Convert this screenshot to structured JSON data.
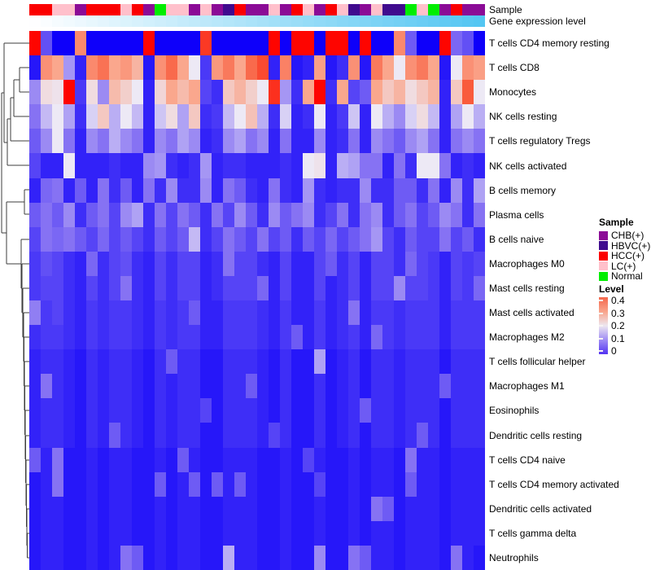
{
  "annotations": {
    "sample_label": "Sample",
    "gene_label": "Gene expression level"
  },
  "chart_data": {
    "type": "heatmap",
    "rows": [
      "T cells CD4 memory resting",
      "T cells CD8",
      "Monocytes",
      "NK cells resting",
      "T cells regulatory  Tregs",
      "NK cells activated",
      "B cells memory",
      "Plasma cells",
      "B cells naive",
      "Macrophages M0",
      "Mast cells resting",
      "Mast cells activated",
      "Macrophages M2",
      "T cells follicular helper",
      "Macrophages M1",
      "Eosinophils",
      "Dendritic cells resting",
      "T cells CD4 naive",
      "T cells CD4 memory activated",
      "Dendritic cells activated",
      "T cells gamma delta",
      "Neutrophils"
    ],
    "n_cols": 40,
    "column_groups": [
      "HCC(+)",
      "HCC(+)",
      "LC(+)",
      "LC(+)",
      "CHB(+)",
      "HCC(+)",
      "HCC(+)",
      "HCC(+)",
      "LC(+)",
      "HCC(+)",
      "CHB(+)",
      "Normal",
      "LC(+)",
      "LC(+)",
      "CHB(+)",
      "LC(+)",
      "CHB(+)",
      "HBVC(+)",
      "HCC(+)",
      "CHB(+)",
      "CHB(+)",
      "LC(+)",
      "CHB(+)",
      "HCC(+)",
      "LC(+)",
      "CHB(+)",
      "HCC(+)",
      "LC(+)",
      "HBVC(+)",
      "CHB(+)",
      "LC(+)",
      "HBVC(+)",
      "HBVC(+)",
      "Normal",
      "LC(+)",
      "Normal",
      "CHB(+)",
      "HCC(+)",
      "CHB(+)",
      "CHB(+)"
    ],
    "group_colors": {
      "CHB(+)": "#8B0B96",
      "HBVC(+)": "#400B8E",
      "HCC(+)": "#FB0000",
      "LC(+)": "#FFC0CB",
      "Normal": "#00EE00"
    },
    "gene_expression_gradient": {
      "start": "#FEFEFF",
      "end": "#54C6F2"
    },
    "colormap_stops": [
      [
        0,
        "#0E00FA"
      ],
      [
        0.1,
        "#8672F3"
      ],
      [
        0.2,
        "#EDE9F5"
      ],
      [
        0.3,
        "#FAA78D"
      ],
      [
        0.4,
        "#F95B3C"
      ],
      [
        0.5,
        "#FE0500"
      ]
    ],
    "values": [
      [
        0.5,
        0.07,
        0,
        0,
        0.34,
        0,
        0,
        0,
        0,
        0,
        0.5,
        0,
        0,
        0,
        0,
        0.44,
        0,
        0,
        0,
        0,
        0,
        0.5,
        0,
        0.52,
        0.52,
        0,
        0.5,
        0.5,
        0,
        0.5,
        0,
        0,
        0.34,
        0.08,
        0,
        0,
        0.5,
        0.09,
        0.07,
        0
      ],
      [
        0.02,
        0.33,
        0.3,
        0.13,
        0.03,
        0.34,
        0.37,
        0.3,
        0.32,
        0.28,
        0.02,
        0.33,
        0.38,
        0.3,
        0.2,
        0.05,
        0.32,
        0.36,
        0.3,
        0.38,
        0.42,
        0.03,
        0.35,
        0.02,
        0.03,
        0.31,
        0.02,
        0.04,
        0.33,
        0.02,
        0.36,
        0.3,
        0.2,
        0.33,
        0.36,
        0.3,
        0.02,
        0.2,
        0.33,
        0.31
      ],
      [
        0.12,
        0.22,
        0.21,
        0.55,
        0.05,
        0.22,
        0.12,
        0.27,
        0.24,
        0.2,
        0.03,
        0.23,
        0.3,
        0.27,
        0.3,
        0.06,
        0.04,
        0.25,
        0.28,
        0.24,
        0.2,
        0.45,
        0.13,
        0.04,
        0.3,
        0.5,
        0.04,
        0.3,
        0.06,
        0.08,
        0.3,
        0.25,
        0.28,
        0.22,
        0.25,
        0.28,
        0.03,
        0.25,
        0.4,
        0.2
      ],
      [
        0.1,
        0.16,
        0.2,
        0.14,
        0.04,
        0.18,
        0.25,
        0.15,
        0.2,
        0.16,
        0.03,
        0.17,
        0.22,
        0.14,
        0.25,
        0.04,
        0.05,
        0.16,
        0.2,
        0.26,
        0.15,
        0.04,
        0.18,
        0.03,
        0.04,
        0.2,
        0.03,
        0.05,
        0.17,
        0.03,
        0.2,
        0.15,
        0.12,
        0.18,
        0.22,
        0.16,
        0.03,
        0.14,
        0.2,
        0.15
      ],
      [
        0.08,
        0.12,
        0.2,
        0.1,
        0.03,
        0.12,
        0.1,
        0.15,
        0.12,
        0.1,
        0.03,
        0.12,
        0.1,
        0.14,
        0.12,
        0.03,
        0.04,
        0.12,
        0.14,
        0.1,
        0.12,
        0.03,
        0.1,
        0.03,
        0.03,
        0.12,
        0.03,
        0.04,
        0.1,
        0.03,
        0.12,
        0.1,
        0.08,
        0.12,
        0.14,
        0.1,
        0.03,
        0.1,
        0.12,
        0.1
      ],
      [
        0.06,
        0.03,
        0.03,
        0.2,
        0.03,
        0.03,
        0.03,
        0.04,
        0.03,
        0.03,
        0.12,
        0.13,
        0.04,
        0.03,
        0.04,
        0.13,
        0.03,
        0.04,
        0.04,
        0.03,
        0.03,
        0.03,
        0.04,
        0.03,
        0.2,
        0.21,
        0.03,
        0.15,
        0.14,
        0.1,
        0.1,
        0.03,
        0.1,
        0.04,
        0.2,
        0.2,
        0.1,
        0.03,
        0.04,
        0.03
      ],
      [
        0.03,
        0.09,
        0.1,
        0.03,
        0.08,
        0.03,
        0.1,
        0.04,
        0.08,
        0.03,
        0.1,
        0.04,
        0.12,
        0.04,
        0.04,
        0.12,
        0.03,
        0.1,
        0.08,
        0.04,
        0.03,
        0.1,
        0.04,
        0.03,
        0.13,
        0.04,
        0.03,
        0.04,
        0.04,
        0.12,
        0.04,
        0.04,
        0.08,
        0.08,
        0.04,
        0.1,
        0.03,
        0.12,
        0.04,
        0.14
      ],
      [
        0.08,
        0.1,
        0.08,
        0.12,
        0.04,
        0.08,
        0.1,
        0.06,
        0.12,
        0.14,
        0.04,
        0.1,
        0.06,
        0.1,
        0.08,
        0.04,
        0.1,
        0.06,
        0.12,
        0.08,
        0.04,
        0.12,
        0.08,
        0.1,
        0.12,
        0.04,
        0.06,
        0.1,
        0.04,
        0.1,
        0.12,
        0.04,
        0.08,
        0.1,
        0.06,
        0.08,
        0.12,
        0.1,
        0.04,
        0.1
      ],
      [
        0.06,
        0.1,
        0.09,
        0.1,
        0.08,
        0.06,
        0.09,
        0.06,
        0.08,
        0.06,
        0.04,
        0.08,
        0.06,
        0.08,
        0.16,
        0.04,
        0.06,
        0.1,
        0.08,
        0.06,
        0.1,
        0.06,
        0.08,
        0.04,
        0.08,
        0.06,
        0.09,
        0.06,
        0.08,
        0.1,
        0.13,
        0.06,
        0.04,
        0.08,
        0.06,
        0.06,
        0.1,
        0.06,
        0.08,
        0.04
      ],
      [
        0.05,
        0.07,
        0.06,
        0.04,
        0.03,
        0.09,
        0.04,
        0.06,
        0.07,
        0.04,
        0.03,
        0.06,
        0.04,
        0.06,
        0.06,
        0.03,
        0.04,
        0.1,
        0.06,
        0.06,
        0.04,
        0.03,
        0.06,
        0.03,
        0.03,
        0.06,
        0.08,
        0.04,
        0.06,
        0.03,
        0.06,
        0.06,
        0.04,
        0.09,
        0.06,
        0.05,
        0.03,
        0.06,
        0.05,
        0.06
      ],
      [
        0.05,
        0.06,
        0.06,
        0.04,
        0.03,
        0.06,
        0.04,
        0.06,
        0.1,
        0.04,
        0.03,
        0.06,
        0.04,
        0.06,
        0.06,
        0.03,
        0.04,
        0.06,
        0.06,
        0.06,
        0.09,
        0.03,
        0.06,
        0.03,
        0.03,
        0.06,
        0.03,
        0.04,
        0.06,
        0.03,
        0.06,
        0.06,
        0.12,
        0.06,
        0.06,
        0.05,
        0.03,
        0.06,
        0.05,
        0.09
      ],
      [
        0.11,
        0.05,
        0.06,
        0.04,
        0.03,
        0.05,
        0.04,
        0.05,
        0.05,
        0.04,
        0.03,
        0.05,
        0.04,
        0.05,
        0.08,
        0.03,
        0.03,
        0.05,
        0.05,
        0.05,
        0.04,
        0.03,
        0.05,
        0.03,
        0.03,
        0.05,
        0.03,
        0.04,
        0.1,
        0.03,
        0.05,
        0.05,
        0.04,
        0.05,
        0.05,
        0.05,
        0.03,
        0.05,
        0.05,
        0.05
      ],
      [
        0.04,
        0.05,
        0.05,
        0.04,
        0.03,
        0.05,
        0.04,
        0.05,
        0.05,
        0.04,
        0.03,
        0.05,
        0.04,
        0.05,
        0.05,
        0.03,
        0.03,
        0.05,
        0.05,
        0.05,
        0.04,
        0.03,
        0.05,
        0.08,
        0.03,
        0.05,
        0.03,
        0.04,
        0.05,
        0.03,
        0.09,
        0.05,
        0.04,
        0.05,
        0.05,
        0.05,
        0.03,
        0.05,
        0.05,
        0.05
      ],
      [
        0.03,
        0.04,
        0.04,
        0.03,
        0.02,
        0.04,
        0.03,
        0.04,
        0.04,
        0.03,
        0.02,
        0.04,
        0.08,
        0.04,
        0.04,
        0.02,
        0.02,
        0.04,
        0.04,
        0.04,
        0.03,
        0.02,
        0.04,
        0.02,
        0.02,
        0.14,
        0.02,
        0.03,
        0.04,
        0.02,
        0.04,
        0.04,
        0.03,
        0.04,
        0.04,
        0.04,
        0.02,
        0.04,
        0.04,
        0.04
      ],
      [
        0.03,
        0.1,
        0.04,
        0.03,
        0.02,
        0.04,
        0.03,
        0.04,
        0.04,
        0.03,
        0.02,
        0.04,
        0.03,
        0.04,
        0.04,
        0.02,
        0.02,
        0.04,
        0.04,
        0.08,
        0.03,
        0.02,
        0.04,
        0.02,
        0.02,
        0.04,
        0.02,
        0.03,
        0.04,
        0.02,
        0.04,
        0.04,
        0.03,
        0.04,
        0.04,
        0.04,
        0.08,
        0.04,
        0.04,
        0.04
      ],
      [
        0.03,
        0.04,
        0.04,
        0.03,
        0.02,
        0.04,
        0.03,
        0.04,
        0.04,
        0.03,
        0.02,
        0.04,
        0.03,
        0.04,
        0.04,
        0.06,
        0.02,
        0.04,
        0.04,
        0.04,
        0.03,
        0.02,
        0.04,
        0.02,
        0.02,
        0.04,
        0.02,
        0.03,
        0.04,
        0.08,
        0.04,
        0.04,
        0.03,
        0.04,
        0.04,
        0.04,
        0.02,
        0.04,
        0.04,
        0.04
      ],
      [
        0.03,
        0.04,
        0.04,
        0.03,
        0.02,
        0.04,
        0.03,
        0.08,
        0.04,
        0.03,
        0.02,
        0.04,
        0.03,
        0.04,
        0.04,
        0.02,
        0.02,
        0.04,
        0.04,
        0.04,
        0.03,
        0.06,
        0.04,
        0.02,
        0.02,
        0.04,
        0.02,
        0.03,
        0.04,
        0.02,
        0.04,
        0.04,
        0.03,
        0.04,
        0.08,
        0.04,
        0.02,
        0.04,
        0.04,
        0.04
      ],
      [
        0.08,
        0.03,
        0.1,
        0.02,
        0.02,
        0.03,
        0.02,
        0.03,
        0.03,
        0.02,
        0.02,
        0.03,
        0.02,
        0.08,
        0.03,
        0.02,
        0.02,
        0.03,
        0.03,
        0.03,
        0.02,
        0.02,
        0.03,
        0.02,
        0.06,
        0.03,
        0.02,
        0.02,
        0.03,
        0.02,
        0.03,
        0.03,
        0.02,
        0.1,
        0.03,
        0.03,
        0.02,
        0.03,
        0.03,
        0.03
      ],
      [
        0.02,
        0.03,
        0.1,
        0.02,
        0.02,
        0.03,
        0.02,
        0.03,
        0.03,
        0.02,
        0.02,
        0.08,
        0.02,
        0.03,
        0.08,
        0.02,
        0.08,
        0.03,
        0.08,
        0.03,
        0.02,
        0.02,
        0.03,
        0.02,
        0.02,
        0.06,
        0.02,
        0.02,
        0.03,
        0.02,
        0.03,
        0.03,
        0.02,
        0.08,
        0.03,
        0.03,
        0.02,
        0.03,
        0.03,
        0.03
      ],
      [
        0.02,
        0.03,
        0.03,
        0.02,
        0.02,
        0.03,
        0.02,
        0.03,
        0.03,
        0.02,
        0.02,
        0.03,
        0.02,
        0.03,
        0.03,
        0.02,
        0.02,
        0.03,
        0.03,
        0.03,
        0.02,
        0.02,
        0.03,
        0.02,
        0.02,
        0.03,
        0.02,
        0.02,
        0.03,
        0.02,
        0.1,
        0.08,
        0.02,
        0.03,
        0.03,
        0.03,
        0.02,
        0.03,
        0.03,
        0.03
      ],
      [
        0.02,
        0.03,
        0.03,
        0.02,
        0.02,
        0.03,
        0.02,
        0.03,
        0.03,
        0.02,
        0.02,
        0.03,
        0.02,
        0.03,
        0.03,
        0.02,
        0.02,
        0.03,
        0.03,
        0.03,
        0.02,
        0.02,
        0.03,
        0.02,
        0.02,
        0.03,
        0.02,
        0.02,
        0.03,
        0.02,
        0.03,
        0.03,
        0.02,
        0.03,
        0.03,
        0.03,
        0.02,
        0.03,
        0.03,
        0.03
      ],
      [
        0.02,
        0.03,
        0.03,
        0.02,
        0.02,
        0.03,
        0.02,
        0.03,
        0.1,
        0.08,
        0.02,
        0.03,
        0.02,
        0.03,
        0.03,
        0.02,
        0.02,
        0.15,
        0.03,
        0.03,
        0.02,
        0.02,
        0.03,
        0.02,
        0.02,
        0.12,
        0.02,
        0.02,
        0.1,
        0.08,
        0.03,
        0.03,
        0.02,
        0.03,
        0.03,
        0.03,
        0.02,
        0.1,
        0.03,
        0.02
      ]
    ],
    "legend_sample": {
      "title": "Sample",
      "items": [
        {
          "label": "CHB(+)",
          "color": "#8B0B96"
        },
        {
          "label": "HBVC(+)",
          "color": "#400B8E"
        },
        {
          "label": "HCC(+)",
          "color": "#FB0000"
        },
        {
          "label": "LC(+)",
          "color": "#FFC0CB"
        },
        {
          "label": "Normal",
          "color": "#00EE00"
        }
      ]
    },
    "legend_level": {
      "title": "Level",
      "ticks": [
        "0.4",
        "0.3",
        "0.2",
        "0.1",
        "0"
      ],
      "gradient": [
        "#F4674C",
        "#F9A48B",
        "#EDE7F0",
        "#9F8CF4",
        "#5334F1"
      ]
    }
  }
}
